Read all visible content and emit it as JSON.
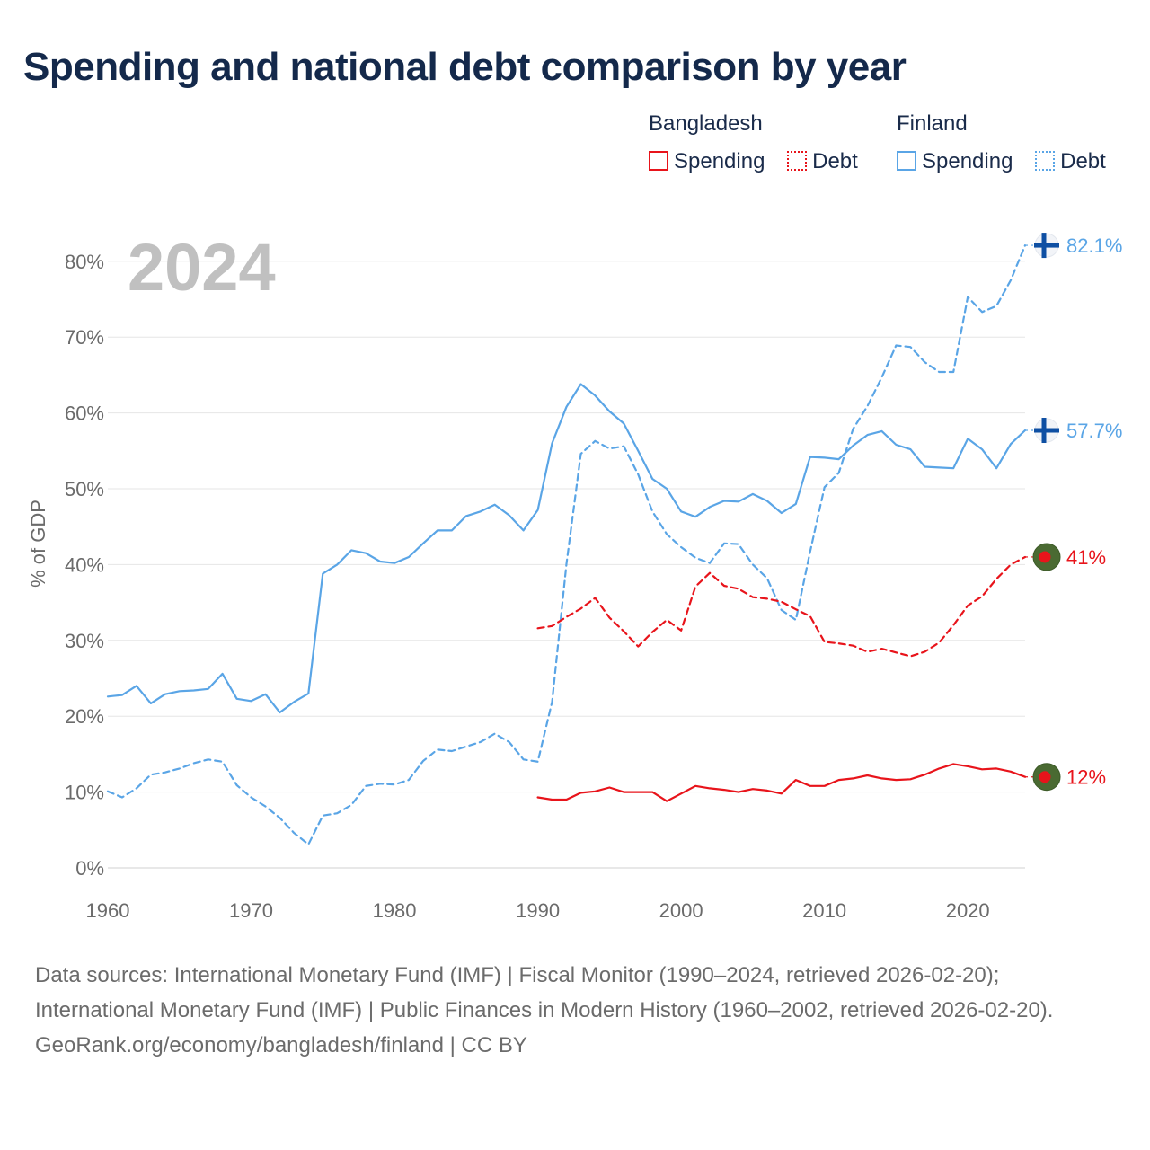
{
  "title": "Spending and national debt comparison by year",
  "legend": {
    "groups": [
      {
        "name": "Bangladesh",
        "color": "#e8141b",
        "items": [
          {
            "label": "Spending",
            "style": "solid"
          },
          {
            "label": "Debt",
            "style": "dotted"
          }
        ]
      },
      {
        "name": "Finland",
        "color": "#5aa5e6",
        "items": [
          {
            "label": "Spending",
            "style": "solid"
          },
          {
            "label": "Debt",
            "style": "dotted"
          }
        ]
      }
    ]
  },
  "sources": {
    "line1": "Data sources: International Monetary Fund (IMF) | Fiscal Monitor (1990–2024, retrieved 2026-02-20); International Monetary Fund (IMF) | Public Finances in Modern History (1960–2002, retrieved 2026-02-20).",
    "line2": "GeoRank.org/economy/bangladesh/finland | CC BY"
  },
  "colors": {
    "bangladesh": "#e8141b",
    "finland": "#5aa5e6",
    "year": "#c0c0c0",
    "grid": "#e6e6e6",
    "axis_text": "#6b6b6b"
  },
  "chart_data": {
    "type": "line",
    "year_label": "2024",
    "ylabel": "% of GDP",
    "xlim": [
      1960,
      2024
    ],
    "ylim": [
      0,
      85
    ],
    "xticks": [
      1960,
      1970,
      1980,
      1990,
      2000,
      2010,
      2020
    ],
    "yticks": [
      0,
      10,
      20,
      30,
      40,
      50,
      60,
      70,
      80
    ],
    "ytick_labels": [
      "0%",
      "10%",
      "20%",
      "30%",
      "40%",
      "50%",
      "60%",
      "70%",
      "80%"
    ],
    "series": [
      {
        "name": "Finland Spending",
        "country": "Finland",
        "metric": "Spending",
        "style": "solid",
        "start_year": 1960,
        "end_label": "57.7%",
        "values": [
          22.6,
          22.8,
          24.0,
          21.7,
          22.9,
          23.3,
          23.4,
          23.6,
          25.6,
          22.3,
          22.0,
          22.9,
          20.5,
          21.9,
          23.0,
          38.8,
          40.0,
          41.9,
          41.5,
          40.4,
          40.2,
          41.0,
          42.8,
          44.5,
          44.5,
          46.4,
          47.0,
          47.9,
          46.5,
          44.5,
          47.2,
          56.0,
          60.8,
          63.8,
          62.3,
          60.2,
          58.6,
          55.0,
          51.3,
          50.0,
          47.0,
          46.3,
          47.6,
          48.4,
          48.3,
          49.3,
          48.4,
          46.8,
          48.0,
          54.2,
          54.1,
          53.9,
          55.7,
          57.1,
          57.6,
          55.8,
          55.2,
          52.9,
          52.8,
          52.7,
          56.6,
          55.2,
          52.7,
          55.9,
          57.7
        ]
      },
      {
        "name": "Finland Debt",
        "country": "Finland",
        "metric": "Debt",
        "style": "dashed",
        "start_year": 1960,
        "end_label": "82.1%",
        "values": [
          10.1,
          9.3,
          10.5,
          12.3,
          12.6,
          13.1,
          13.8,
          14.3,
          14.0,
          10.9,
          9.3,
          8.1,
          6.6,
          4.6,
          3.1,
          6.9,
          7.2,
          8.3,
          10.8,
          11.1,
          11.0,
          11.6,
          14.1,
          15.6,
          15.4,
          16.0,
          16.6,
          17.7,
          16.6,
          14.3,
          14.0,
          21.9,
          40.1,
          54.6,
          56.3,
          55.3,
          55.6,
          51.9,
          47.0,
          44.0,
          42.3,
          40.9,
          40.2,
          42.8,
          42.7,
          40.0,
          38.2,
          34.0,
          32.7,
          41.7,
          50.2,
          52.1,
          57.9,
          60.9,
          64.7,
          68.9,
          68.7,
          66.7,
          65.4,
          65.4,
          75.3,
          73.3,
          74.1,
          77.5,
          82.1
        ]
      },
      {
        "name": "Bangladesh Debt",
        "country": "Bangladesh",
        "metric": "Debt",
        "style": "dashed",
        "start_year": 1990,
        "end_label": "41%",
        "values": [
          31.6,
          31.9,
          33.1,
          34.2,
          35.6,
          33.0,
          31.2,
          29.2,
          31.1,
          32.7,
          31.3,
          37.1,
          38.9,
          37.2,
          36.8,
          35.7,
          35.5,
          35.1,
          34.1,
          33.2,
          29.8,
          29.6,
          29.3,
          28.5,
          28.9,
          28.4,
          27.9,
          28.5,
          29.7,
          32.0,
          34.6,
          35.8,
          38.1,
          40.0,
          41.0
        ]
      },
      {
        "name": "Bangladesh Spending",
        "country": "Bangladesh",
        "metric": "Spending",
        "style": "solid",
        "start_year": 1990,
        "end_label": "12%",
        "values": [
          9.3,
          9.0,
          9.0,
          9.9,
          10.1,
          10.6,
          10.0,
          10.0,
          10.0,
          8.8,
          9.8,
          10.8,
          10.5,
          10.3,
          10.0,
          10.4,
          10.2,
          9.8,
          11.6,
          10.8,
          10.8,
          11.6,
          11.8,
          12.2,
          11.8,
          11.6,
          11.7,
          12.3,
          13.1,
          13.7,
          13.4,
          13.0,
          13.1,
          12.7,
          12.0
        ]
      }
    ]
  }
}
